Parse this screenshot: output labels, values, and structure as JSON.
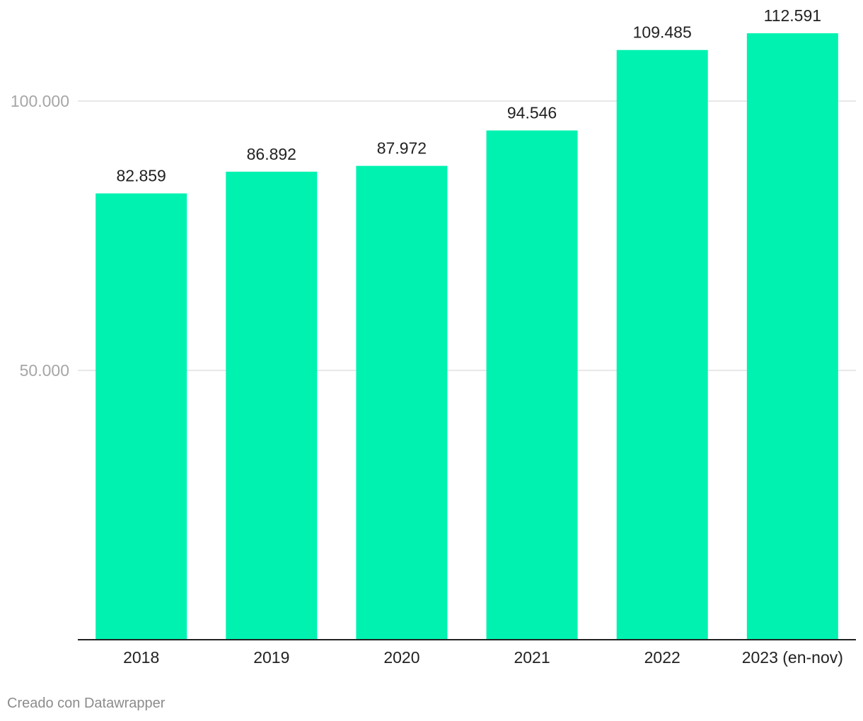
{
  "chart_data": {
    "type": "bar",
    "title": "",
    "xlabel": "",
    "ylabel": "",
    "categories": [
      "2018",
      "2019",
      "2020",
      "2021",
      "2022",
      "2023 (en-nov)"
    ],
    "values": [
      82859,
      86892,
      87972,
      94546,
      109485,
      112591
    ],
    "value_labels": [
      "82.859",
      "86.892",
      "87.972",
      "94.546",
      "109.485",
      "112.591"
    ],
    "ylim": [
      0,
      115000
    ],
    "y_ticks": [
      {
        "value": 50000,
        "label": "50.000"
      },
      {
        "value": 100000,
        "label": "100.000"
      }
    ],
    "grid": true,
    "legend": "none",
    "bar_color": "#00f2b0"
  },
  "footer": {
    "credit": "Creado con Datawrapper"
  },
  "colors": {
    "bar": "#00f2b0",
    "gridline": "#e0e0e0",
    "axis": "#222222",
    "tick_text": "#a6a6a6",
    "label_text": "#222222",
    "footer_text": "#8c8c8c"
  }
}
